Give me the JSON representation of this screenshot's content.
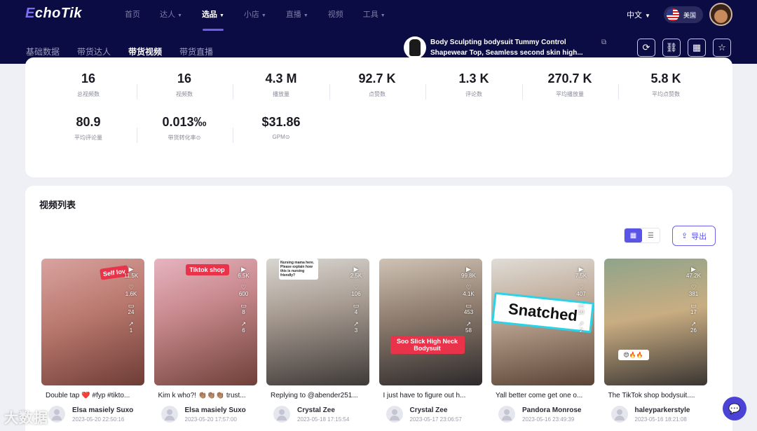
{
  "brand": {
    "prefix": "E",
    "rest": "choTik"
  },
  "main_nav": [
    {
      "label": "首页",
      "caret": false
    },
    {
      "label": "达人",
      "caret": true
    },
    {
      "label": "选品",
      "caret": true,
      "active": true
    },
    {
      "label": "小店",
      "caret": true
    },
    {
      "label": "直播",
      "caret": true
    },
    {
      "label": "视频",
      "caret": false
    },
    {
      "label": "工具",
      "caret": true
    }
  ],
  "language": "中文",
  "region": "美国",
  "sub_nav": [
    {
      "label": "基础数据"
    },
    {
      "label": "带货达人"
    },
    {
      "label": "带货视频",
      "active": true
    },
    {
      "label": "带货直播"
    }
  ],
  "product": {
    "name": "Body Sculpting bodysuit Tummy Control Shapewear Top, Seamless second skin high..."
  },
  "tool_icons": [
    "refresh-icon",
    "link-icon",
    "qrcode-icon",
    "star-icon"
  ],
  "stats": [
    {
      "value": "16",
      "label": "总视频数"
    },
    {
      "value": "16",
      "label": "视频数"
    },
    {
      "value": "4.3 M",
      "label": "播放量"
    },
    {
      "value": "92.7 K",
      "label": "点赞数"
    },
    {
      "value": "1.3 K",
      "label": "评论数"
    },
    {
      "value": "270.7 K",
      "label": "平均播放量"
    },
    {
      "value": "5.8 K",
      "label": "平均点赞数"
    },
    {
      "value": "80.9",
      "label": "平均评论量"
    },
    {
      "value": "0.013‰",
      "label": "带货转化率⊙"
    },
    {
      "value": "$31.86",
      "label": "GPM⊙"
    }
  ],
  "video_section": {
    "title": "视频列表",
    "export_label": "导出"
  },
  "videos": [
    {
      "title": "Double tap ❤️ #fyp #tikto...",
      "author": "Elsa masiely Suxo",
      "date": "2023-05-20 22:50:16",
      "plays": "11.5K",
      "likes": "1.6K",
      "comments": "24",
      "shares": "1",
      "overlay": "Self lov",
      "bg": "linear-gradient(160deg,#d9a3a0 0%,#b9786d 45%,#6d3c36 100%)"
    },
    {
      "title": "Kim k who?! 👏🏽👏🏽👏🏽 trust...",
      "author": "Elsa masiely Suxo",
      "date": "2023-05-20 17:57:00",
      "plays": "6.5K",
      "likes": "600",
      "comments": "8",
      "shares": "6",
      "overlay": "Tiktok shop",
      "bg": "linear-gradient(160deg,#e7b4c0 0%,#c7888c 40%,#6e4038 100%)"
    },
    {
      "title": "Replying to @abender251...",
      "author": "Crystal Zee",
      "date": "2023-05-18 17:15:54",
      "plays": "2.5K",
      "likes": "106",
      "comments": "4",
      "shares": "3",
      "overlay": "Nursing mama here. Please explain how this is nursing friendly?",
      "bg": "linear-gradient(170deg,#d9d6d1 0%,#a89c92 40%,#3f3a38 100%)"
    },
    {
      "title": "I just have to figure out h...",
      "author": "Crystal Zee",
      "date": "2023-05-17 23:06:57",
      "plays": "99.8K",
      "likes": "4.1K",
      "comments": "453",
      "shares": "58",
      "overlay": "Soo Slick High Neck Bodysuit",
      "bg": "linear-gradient(170deg,#cfc2b4 0%,#8d7b6d 45%,#2d2a2b 100%)"
    },
    {
      "title": "Yall better come get one o...",
      "author": "Pandora Monrose",
      "date": "2023-05-16 23:49:39",
      "plays": "7.5K",
      "likes": "407",
      "comments": "10",
      "shares": "2",
      "overlay": "Snatched",
      "bg": "linear-gradient(170deg,#e0dcd6 0%,#b9a28e 45%,#5a4335 100%)"
    },
    {
      "title": "The TikTok shop bodysuit....",
      "author": "haleyparkerstyle",
      "date": "2023-05-16 18:21:08",
      "plays": "47.2K",
      "likes": "381",
      "comments": "17",
      "shares": "26",
      "overlay": "😍🔥🔥",
      "bg": "linear-gradient(170deg,#8fa48a 0%,#c9ad82 45%,#3a3532 100%)"
    }
  ],
  "watermark": "大数据",
  "colors": {
    "nav_bg": "#0c0c44",
    "accent": "#5a54e6",
    "tag_red": "#e8334a"
  }
}
